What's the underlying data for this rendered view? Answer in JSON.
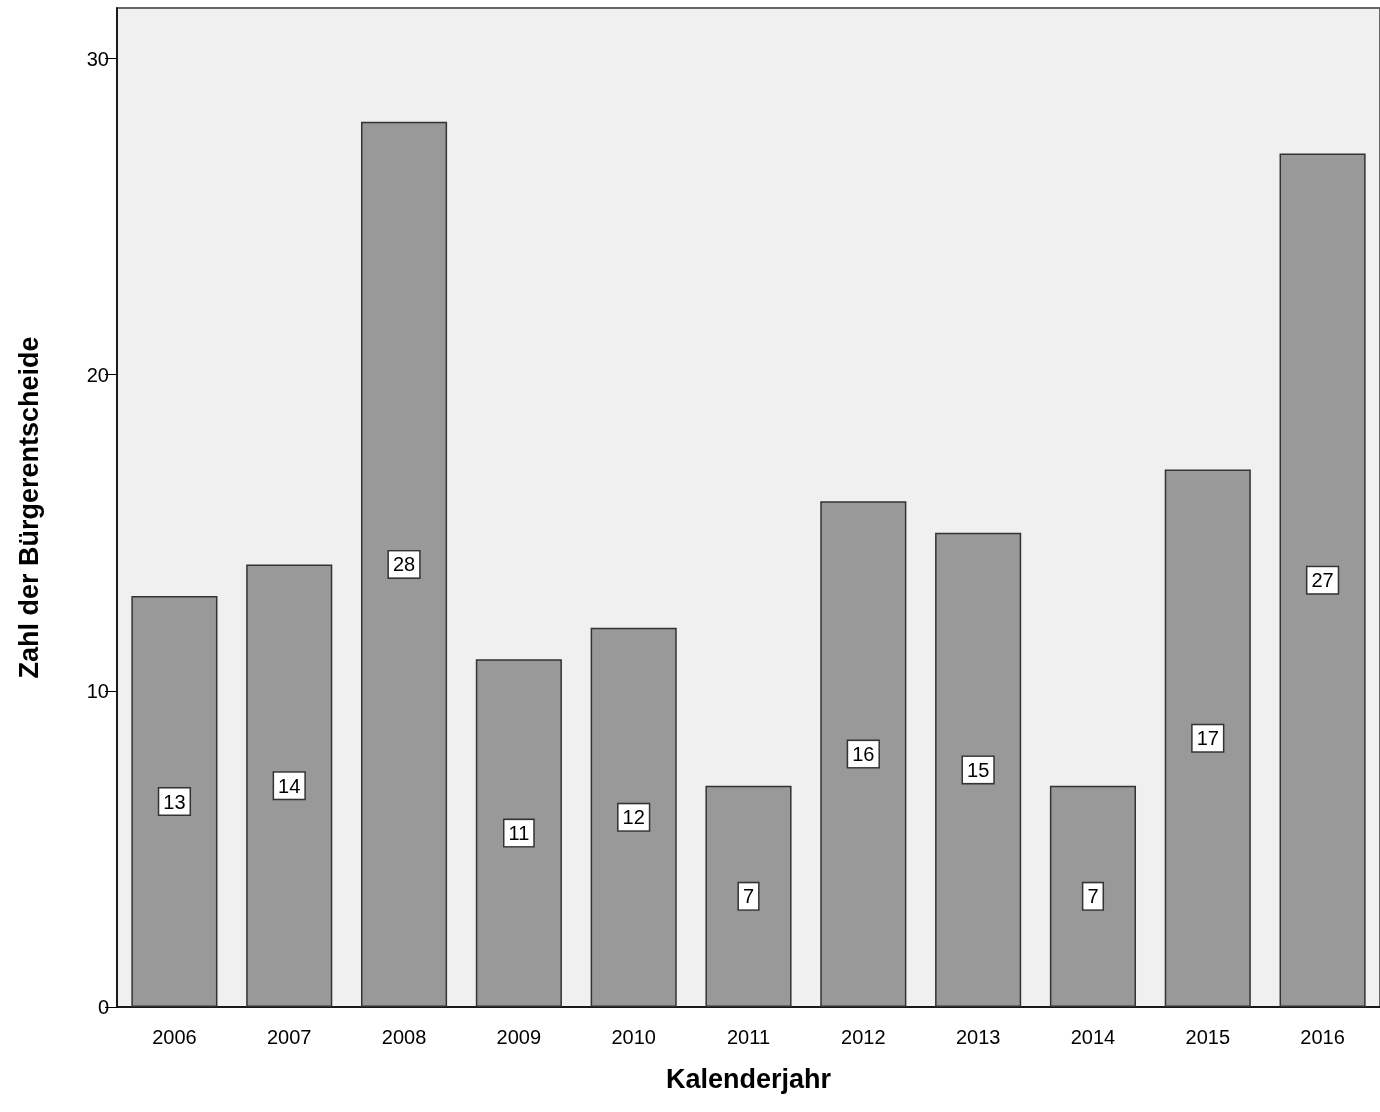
{
  "chart_data": {
    "type": "bar",
    "xlabel": "Kalenderjahr",
    "ylabel": "Zahl der Bürgerentscheide",
    "categories": [
      "2006",
      "2007",
      "2008",
      "2009",
      "2010",
      "2011",
      "2012",
      "2013",
      "2014",
      "2015",
      "2016"
    ],
    "values": [
      13,
      14,
      28,
      11,
      12,
      7,
      16,
      15,
      7,
      17,
      27
    ],
    "color": "#999999",
    "ylim": [
      0,
      31.6
    ],
    "yticks": [
      0,
      10,
      20,
      30
    ],
    "data_labels": true
  }
}
